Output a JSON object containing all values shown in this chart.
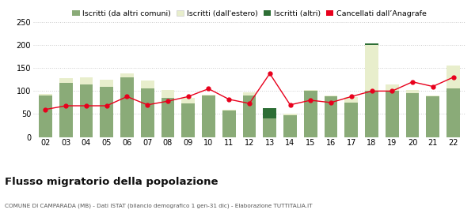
{
  "years": [
    "02",
    "03",
    "04",
    "05",
    "06",
    "07",
    "08",
    "09",
    "10",
    "11",
    "12",
    "13",
    "14",
    "15",
    "16",
    "17",
    "18",
    "19",
    "20",
    "21",
    "22"
  ],
  "iscritti_comuni": [
    90,
    118,
    115,
    110,
    130,
    105,
    85,
    73,
    90,
    57,
    90,
    40,
    48,
    100,
    88,
    75,
    100,
    100,
    95,
    88,
    105
  ],
  "iscritti_estero": [
    3,
    10,
    15,
    14,
    8,
    18,
    18,
    12,
    2,
    2,
    8,
    0,
    2,
    3,
    3,
    12,
    100,
    14,
    7,
    3,
    50
  ],
  "iscritti_altri": [
    0,
    0,
    0,
    0,
    0,
    0,
    0,
    0,
    0,
    0,
    0,
    22,
    0,
    0,
    0,
    0,
    3,
    0,
    0,
    0,
    0
  ],
  "cancellati": [
    60,
    68,
    68,
    68,
    88,
    70,
    78,
    88,
    105,
    82,
    73,
    138,
    70,
    80,
    75,
    88,
    100,
    100,
    120,
    110,
    130
  ],
  "color_comuni": "#8aab78",
  "color_estero": "#e8eecc",
  "color_altri": "#2d6e35",
  "color_cancellati": "#e8001c",
  "title": "Flusso migratorio della popolazione",
  "subtitle": "COMUNE DI CAMPARADA (MB) - Dati ISTAT (bilancio demografico 1 gen-31 dic) - Elaborazione TUTTITALIA.IT",
  "legend_labels": [
    "Iscritti (da altri comuni)",
    "Iscritti (dall'estero)",
    "Iscritti (altri)",
    "Cancellati dall’Anagrafe"
  ],
  "ylim": [
    0,
    250
  ],
  "yticks": [
    0,
    50,
    100,
    150,
    200,
    250
  ],
  "bg_color": "#ffffff"
}
